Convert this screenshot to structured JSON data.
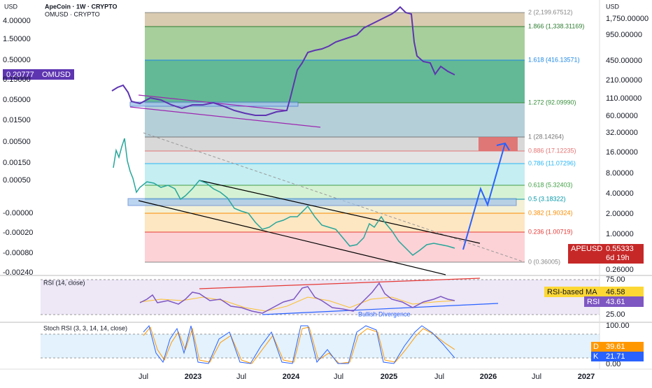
{
  "header": {
    "left_currency": "USD",
    "right_currency": "USD",
    "title": "ApeCoin · 1W · CRYPTO",
    "subtitle": "OMUSD · CRYPTO"
  },
  "left_axis": {
    "ticks": [
      "4.00000",
      "1.50000",
      "0.50000",
      "0.15000",
      "0.05000",
      "0.01500",
      "0.00500",
      "0.00150",
      "0.00050",
      "-0.00000",
      "-0.00020",
      "-0.00080",
      "-0.00240"
    ],
    "symbol_label": {
      "value": "0.20777",
      "name": "OMUSD"
    }
  },
  "right_axis": {
    "ticks": [
      "1,750.00000",
      "950.00000",
      "450.00000",
      "210.00000",
      "110.00000",
      "60.00000",
      "32.00000",
      "16.00000",
      "8.00000",
      "4.00000",
      "2.00000",
      "1.00000",
      "0.26000"
    ],
    "price_label": {
      "name": "APEUSD",
      "value": "0.55333",
      "countdown": "6d 19h"
    }
  },
  "fib_levels": [
    "2 (2,199.67512)",
    "1.866 (1,338.31169)",
    "1.618 (416.13571)",
    "1.272 (92.09990)",
    "1 (28.14264)",
    "0.886 (17.12235)",
    "0.786 (11.07296)",
    "0.618 (5.32403)",
    "0.5 (3.18322)",
    "0.382 (1.90324)",
    "0.236 (1.00719)",
    "0 (0.36005)"
  ],
  "rsi": {
    "title": "RSI (14, close)",
    "ticks": [
      "75.00",
      "25.00"
    ],
    "ma_label": "RSI-based MA",
    "ma_value": "46.58",
    "rsi_label": "RSI",
    "rsi_value": "43.61",
    "annotation": "Bullish Divergence"
  },
  "stoch": {
    "title": "Stoch RSI (3, 3, 14, 14, close)",
    "ticks": [
      "100.00",
      "0.00"
    ],
    "d_label": "D",
    "d_value": "39.61",
    "k_label": "K",
    "k_value": "21.71"
  },
  "x_axis": {
    "labels": [
      "Jul",
      "2023",
      "Jul",
      "2024",
      "Jul",
      "2025",
      "Jul",
      "2026",
      "Jul",
      "2027"
    ]
  }
}
